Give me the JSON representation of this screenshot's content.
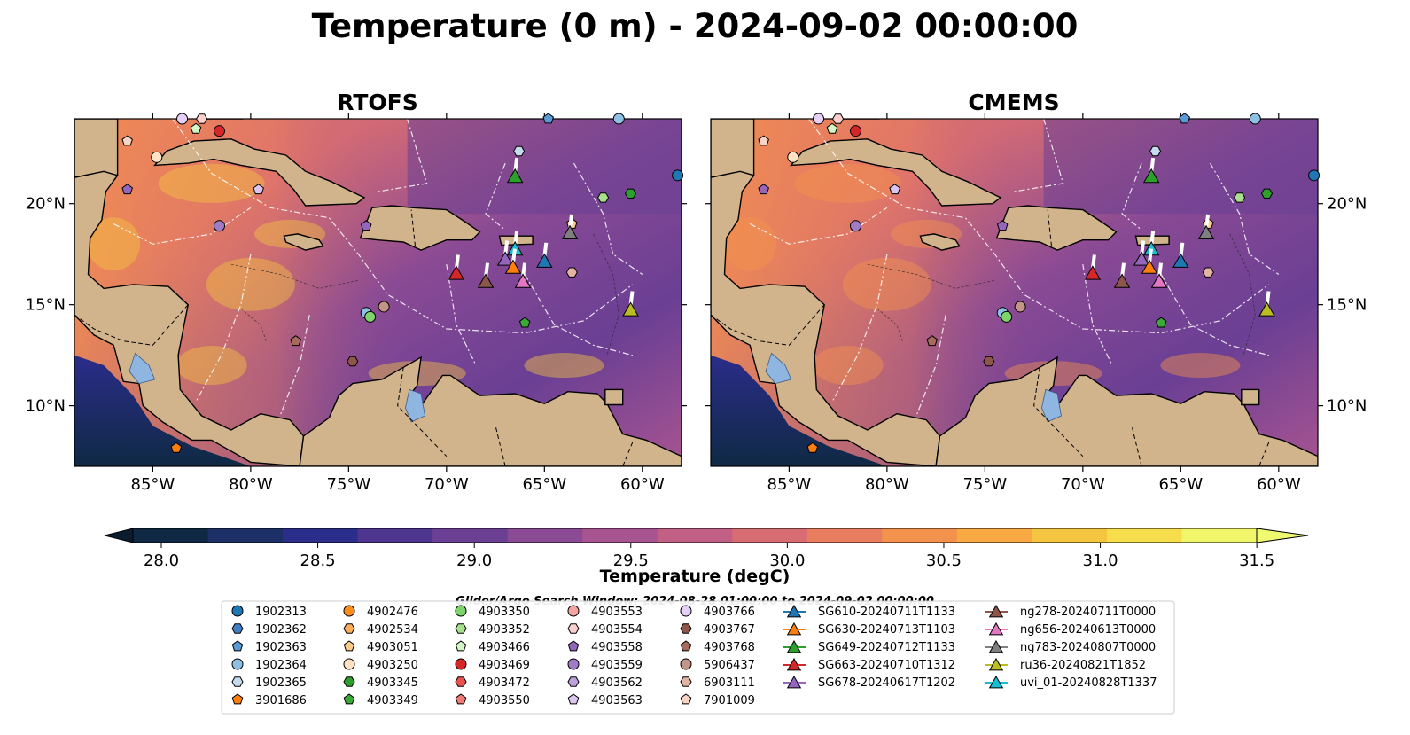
{
  "title": "Temperature (0 m) - 2024-09-02 00:00:00",
  "panels": [
    {
      "title": "RTOFS"
    },
    {
      "title": "CMEMS"
    }
  ],
  "map": {
    "lon_range": [
      -89,
      -58
    ],
    "lat_range": [
      7,
      24.2
    ],
    "lon_ticks": [
      -85,
      -80,
      -75,
      -70,
      -65,
      -60
    ],
    "lon_tick_labels": [
      "85°W",
      "80°W",
      "75°W",
      "70°W",
      "65°W",
      "60°W"
    ],
    "lat_ticks": [
      10,
      15,
      20
    ],
    "lat_tick_labels": [
      "10°N",
      "15°N",
      "20°N"
    ],
    "land_color": "#d2b48c",
    "ocean_low_color": "#1b0c3b",
    "ocean_high_color": "#f9e84c"
  },
  "colorbar": {
    "label": "Temperature (degC)",
    "min": 28.0,
    "max": 31.5,
    "ticks": [
      28.0,
      28.5,
      29.0,
      29.5,
      30.0,
      30.5,
      31.0,
      31.5
    ],
    "tick_labels": [
      "28.0",
      "28.5",
      "29.0",
      "29.5",
      "30.0",
      "30.5",
      "31.0",
      "31.5"
    ],
    "colors": [
      "#0f2944",
      "#1c2f66",
      "#2b2d8a",
      "#4e3590",
      "#6a3f94",
      "#8a4a94",
      "#a75490",
      "#c15f84",
      "#d86c73",
      "#e87e5f",
      "#f3924c",
      "#f8a944",
      "#f5c441",
      "#f5dd4b",
      "#f0f56a"
    ]
  },
  "legend": {
    "caption": "Glider/Argo Search Window: 2024-08-28 01:00:00 to 2024-09-02 00:00:00",
    "columns": [
      [
        {
          "label": "1902313",
          "marker": "circle",
          "color": "#1f77b4"
        },
        {
          "label": "1902362",
          "marker": "hexagon",
          "color": "#3f7fc2"
        },
        {
          "label": "1902363",
          "marker": "pentagon",
          "color": "#5a9ad6"
        },
        {
          "label": "1902364",
          "marker": "circle",
          "color": "#8ec0e4"
        },
        {
          "label": "1902365",
          "marker": "hexagon",
          "color": "#c6dbef"
        },
        {
          "label": "3901686",
          "marker": "pentagon",
          "color": "#ff7f0e"
        }
      ],
      [
        {
          "label": "4902476",
          "marker": "circle",
          "color": "#ff8c1a"
        },
        {
          "label": "4902534",
          "marker": "hexagon",
          "color": "#ffad5c"
        },
        {
          "label": "4903051",
          "marker": "pentagon",
          "color": "#ffcc8a"
        },
        {
          "label": "4903250",
          "marker": "circle",
          "color": "#ffe3c2"
        },
        {
          "label": "4903345",
          "marker": "hexagon",
          "color": "#2ca02c"
        },
        {
          "label": "4903349",
          "marker": "pentagon",
          "color": "#3aaa35"
        }
      ],
      [
        {
          "label": "4903350",
          "marker": "circle",
          "color": "#7fd36b"
        },
        {
          "label": "4903352",
          "marker": "hexagon",
          "color": "#a8e08e"
        },
        {
          "label": "4903466",
          "marker": "pentagon",
          "color": "#d4f5c4"
        },
        {
          "label": "4903469",
          "marker": "circle",
          "color": "#d62728"
        },
        {
          "label": "4903472",
          "marker": "hexagon",
          "color": "#e8524f"
        },
        {
          "label": "4903550",
          "marker": "pentagon",
          "color": "#f07a76"
        }
      ],
      [
        {
          "label": "4903553",
          "marker": "circle",
          "color": "#f4a3a0"
        },
        {
          "label": "4903554",
          "marker": "hexagon",
          "color": "#fbcfcc"
        },
        {
          "label": "4903558",
          "marker": "pentagon",
          "color": "#9467bd"
        },
        {
          "label": "4903559",
          "marker": "circle",
          "color": "#a07cc6"
        },
        {
          "label": "4903562",
          "marker": "hexagon",
          "color": "#bda0dc"
        },
        {
          "label": "4903563",
          "marker": "pentagon",
          "color": "#dac6f0"
        }
      ],
      [
        {
          "label": "4903766",
          "marker": "circle",
          "color": "#e6d0f7"
        },
        {
          "label": "4903767",
          "marker": "hexagon",
          "color": "#8c564b"
        },
        {
          "label": "4903768",
          "marker": "pentagon",
          "color": "#a66b5d"
        },
        {
          "label": "5906437",
          "marker": "circle",
          "color": "#c49486"
        },
        {
          "label": "6903111",
          "marker": "hexagon",
          "color": "#e3b3a3"
        },
        {
          "label": "7901009",
          "marker": "pentagon",
          "color": "#f7d4c6"
        }
      ],
      [
        {
          "label": "SG610-20240711T1133",
          "marker": "triangle",
          "color": "#1f77b4"
        },
        {
          "label": "SG630-20240713T1103",
          "marker": "triangle",
          "color": "#ff7f0e"
        },
        {
          "label": "SG649-20240712T1133",
          "marker": "triangle",
          "color": "#2ca02c"
        },
        {
          "label": "SG663-20240710T1312",
          "marker": "triangle",
          "color": "#d62728"
        },
        {
          "label": "SG678-20240617T1202",
          "marker": "triangle",
          "color": "#9467bd"
        }
      ],
      [
        {
          "label": "ng278-20240711T0000",
          "marker": "triangle",
          "color": "#8c564b"
        },
        {
          "label": "ng656-20240613T0000",
          "marker": "triangle",
          "color": "#e377c2"
        },
        {
          "label": "ng783-20240807T0000",
          "marker": "triangle",
          "color": "#7f7f7f"
        },
        {
          "label": "ru36-20240821T1852",
          "marker": "triangle",
          "color": "#bcbd22"
        },
        {
          "label": "uvi_01-20240828T1337",
          "marker": "triangle",
          "color": "#17becf"
        }
      ]
    ]
  },
  "chart_data": {
    "type": "heatmap",
    "title": "Temperature (0 m) - 2024-09-02 00:00:00",
    "colorbar_label": "Temperature (degC)",
    "vmin": 28.0,
    "vmax": 31.5,
    "xlim": [
      -89,
      -58
    ],
    "ylim": [
      7,
      24.2
    ],
    "argo_floats": [
      {
        "id": "3901686",
        "lon": -83.8,
        "lat": 7.9,
        "color": "#ff7f0e",
        "marker": "pentagon"
      },
      {
        "id": "4903766",
        "lon": -83.5,
        "lat": 24.3,
        "color": "#e6d0f7",
        "marker": "circle"
      },
      {
        "id": "4903554",
        "lon": -82.5,
        "lat": 24.2,
        "color": "#fbcfcc",
        "marker": "hexagon"
      },
      {
        "id": "4903466",
        "lon": -82.8,
        "lat": 23.7,
        "color": "#d4f5c4",
        "marker": "pentagon"
      },
      {
        "id": "4903469",
        "lon": -81.6,
        "lat": 23.6,
        "color": "#d62728",
        "marker": "circle"
      },
      {
        "id": "7901009",
        "lon": -86.3,
        "lat": 23.1,
        "color": "#f7d4c6",
        "marker": "pentagon"
      },
      {
        "id": "4903250",
        "lon": -84.8,
        "lat": 22.3,
        "color": "#ffe3c2",
        "marker": "circle"
      },
      {
        "id": "4903558",
        "lon": -86.3,
        "lat": 20.7,
        "color": "#9467bd",
        "marker": "pentagon"
      },
      {
        "id": "4903563",
        "lon": -79.6,
        "lat": 20.7,
        "color": "#dac6f0",
        "marker": "pentagon"
      },
      {
        "id": "4903559",
        "lon": -81.6,
        "lat": 18.9,
        "color": "#a07cc6",
        "marker": "circle"
      },
      {
        "id": "4903558b",
        "lon": -74.1,
        "lat": 18.9,
        "color": "#9467bd",
        "marker": "pentagon"
      },
      {
        "id": "1902364",
        "lon": -74.1,
        "lat": 14.6,
        "color": "#8ec0e4",
        "marker": "circle"
      },
      {
        "id": "4903350",
        "lon": -73.9,
        "lat": 14.4,
        "color": "#7fd36b",
        "marker": "circle"
      },
      {
        "id": "5906437",
        "lon": -73.2,
        "lat": 14.9,
        "color": "#c49486",
        "marker": "circle"
      },
      {
        "id": "4903768",
        "lon": -77.7,
        "lat": 13.2,
        "color": "#a66b5d",
        "marker": "pentagon"
      },
      {
        "id": "4903767",
        "lon": -74.8,
        "lat": 12.2,
        "color": "#8c564b",
        "marker": "hexagon"
      },
      {
        "id": "1902365",
        "lon": -66.3,
        "lat": 22.6,
        "color": "#c6dbef",
        "marker": "hexagon"
      },
      {
        "id": "1902363",
        "lon": -64.8,
        "lat": 24.2,
        "color": "#5a9ad6",
        "marker": "pentagon"
      },
      {
        "id": "1902364b",
        "lon": -61.2,
        "lat": 24.2,
        "color": "#8ec0e4",
        "marker": "circle"
      },
      {
        "id": "4903352",
        "lon": -62.0,
        "lat": 20.3,
        "color": "#a8e08e",
        "marker": "hexagon"
      },
      {
        "id": "4903345",
        "lon": -60.6,
        "lat": 20.5,
        "color": "#2ca02c",
        "marker": "hexagon"
      },
      {
        "id": "4903051",
        "lon": -63.6,
        "lat": 19.0,
        "color": "#ffcc8a",
        "marker": "pentagon"
      },
      {
        "id": "6903111",
        "lon": -63.6,
        "lat": 16.6,
        "color": "#e3b3a3",
        "marker": "hexagon"
      },
      {
        "id": "4903349",
        "lon": -66.0,
        "lat": 14.1,
        "color": "#3aaa35",
        "marker": "pentagon"
      },
      {
        "id": "1902313",
        "lon": -58.2,
        "lat": 21.4,
        "color": "#1f77b4",
        "marker": "circle"
      }
    ],
    "gliders": [
      {
        "id": "SG649-20240712T1133",
        "lon": -66.5,
        "lat": 21.3,
        "color": "#2ca02c"
      },
      {
        "id": "ng783-20240807T0000",
        "lon": -63.7,
        "lat": 18.5,
        "color": "#7f7f7f"
      },
      {
        "id": "uvi_01-20240828T1337",
        "lon": -66.5,
        "lat": 17.7,
        "color": "#17becf"
      },
      {
        "id": "SG678-20240617T1202",
        "lon": -67.0,
        "lat": 17.2,
        "color": "#9467bd"
      },
      {
        "id": "SG610-20240711T1133",
        "lon": -65.0,
        "lat": 17.1,
        "color": "#1f77b4"
      },
      {
        "id": "SG630-20240713T1103",
        "lon": -66.6,
        "lat": 16.8,
        "color": "#ff7f0e"
      },
      {
        "id": "SG663-20240710T1312",
        "lon": -69.5,
        "lat": 16.5,
        "color": "#d62728"
      },
      {
        "id": "ng278-20240711T0000",
        "lon": -68.0,
        "lat": 16.1,
        "color": "#8c564b"
      },
      {
        "id": "ng656-20240613T0000",
        "lon": -66.1,
        "lat": 16.1,
        "color": "#e377c2"
      },
      {
        "id": "ru36-20240821T1852",
        "lon": -60.6,
        "lat": 14.7,
        "color": "#bcbd22"
      }
    ]
  }
}
